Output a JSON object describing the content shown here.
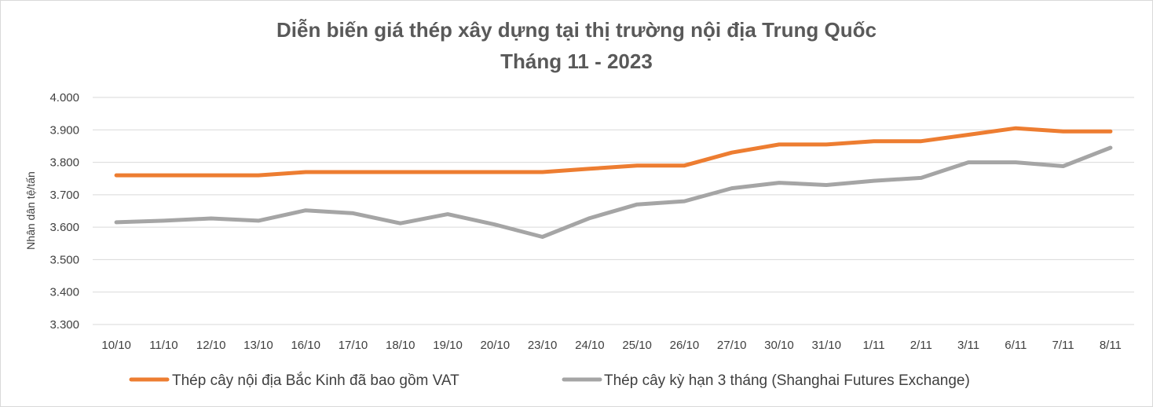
{
  "chart_data": {
    "type": "line",
    "title": "Diễn biến giá thép xây dựng tại thị trường nội địa Trung Quốc",
    "subtitle": "Tháng 11 - 2023",
    "xlabel": "",
    "ylabel": "Nhân dân tệ/tấn",
    "ylim": [
      3300,
      4000
    ],
    "yticks": [
      3300,
      3400,
      3500,
      3600,
      3700,
      3800,
      3900,
      4000
    ],
    "ytick_labels": [
      "3.300",
      "3.400",
      "3.500",
      "3.600",
      "3.700",
      "3.800",
      "3.900",
      "4.000"
    ],
    "grid": true,
    "legend_position": "bottom",
    "categories": [
      "10/10",
      "11/10",
      "12/10",
      "13/10",
      "16/10",
      "17/10",
      "18/10",
      "19/10",
      "20/10",
      "23/10",
      "24/10",
      "25/10",
      "26/10",
      "27/10",
      "30/10",
      "31/10",
      "1/11",
      "2/11",
      "3/11",
      "6/11",
      "7/11",
      "8/11"
    ],
    "series": [
      {
        "name": "Thép cây nội địa Bắc Kinh đã bao gồm VAT",
        "color": "#ed7d31",
        "values": [
          3760,
          3760,
          3760,
          3760,
          3770,
          3770,
          3770,
          3770,
          3770,
          3770,
          3780,
          3790,
          3790,
          3830,
          3855,
          3855,
          3865,
          3865,
          3885,
          3905,
          3895,
          3895
        ]
      },
      {
        "name": "Thép cây kỳ hạn 3 tháng (Shanghai Futures Exchange)",
        "color": "#a5a5a5",
        "values": [
          3615,
          3620,
          3627,
          3620,
          3652,
          3643,
          3612,
          3640,
          3608,
          3570,
          3628,
          3670,
          3680,
          3720,
          3737,
          3730,
          3743,
          3752,
          3800,
          3800,
          3788,
          3845
        ]
      }
    ]
  }
}
